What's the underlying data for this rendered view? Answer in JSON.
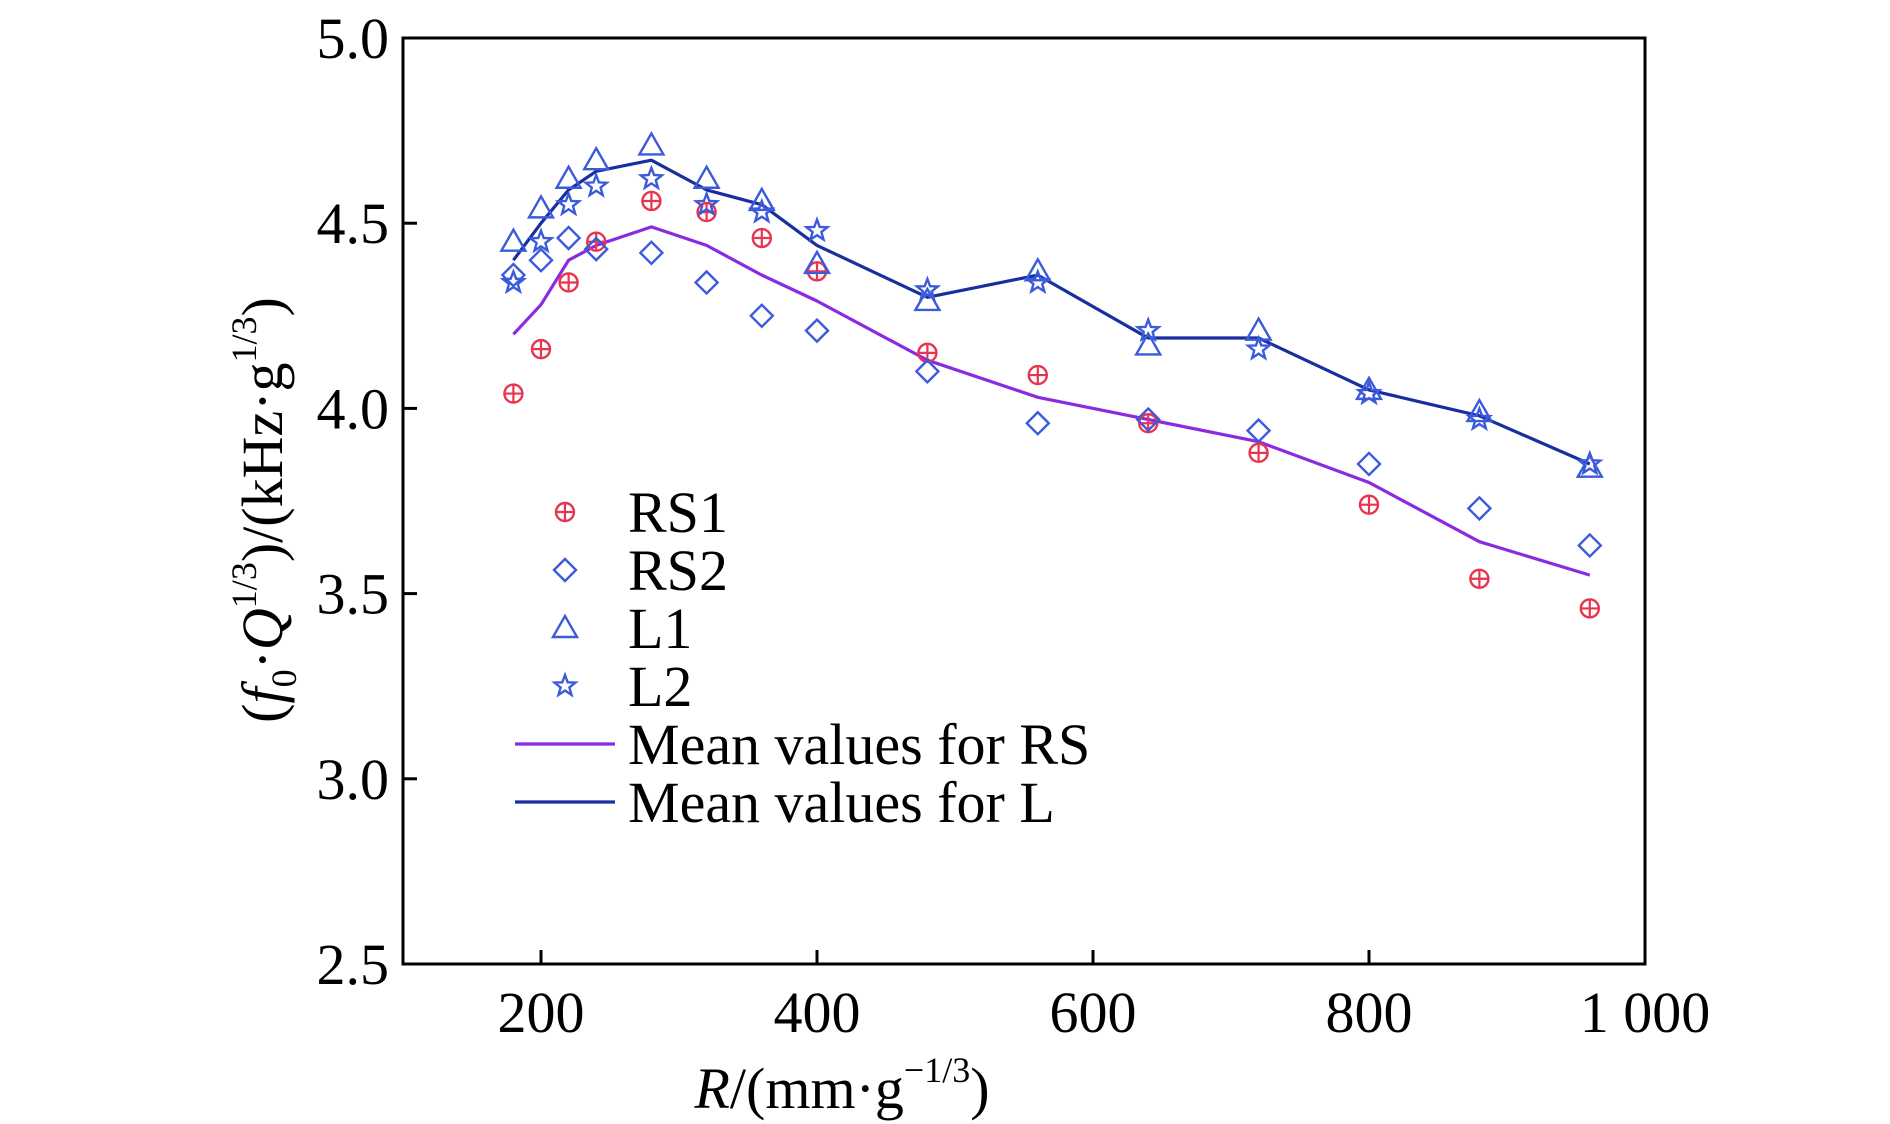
{
  "chart_data": {
    "type": "scatter",
    "xlabel": {
      "main": "R",
      "unit_open": "/(mm·g",
      "unit_sup": "−1/3",
      "unit_close": ")"
    },
    "ylabel": {
      "open": "(",
      "f": "f",
      "f_sub": "0",
      "dot": "·",
      "q": "Q",
      "q_sup": "1/3",
      "unit_open": ")/(kHz·g",
      "unit_sup": "1/3",
      "unit_close": ")"
    },
    "xlim": [
      100,
      1000
    ],
    "ylim": [
      2.5,
      5.0
    ],
    "x_ticks": [
      200,
      400,
      600,
      800,
      1000
    ],
    "x_tick_labels": [
      "200",
      "400",
      "600",
      "800",
      "1 000"
    ],
    "y_ticks": [
      2.5,
      3.0,
      3.5,
      4.0,
      4.5,
      5.0
    ],
    "y_tick_labels": [
      "2.5",
      "3.0",
      "3.5",
      "4.0",
      "4.5",
      "5.0"
    ],
    "grid": false,
    "legend_position": "lower-left",
    "series": [
      {
        "name": "RS1",
        "marker": "circle-plus",
        "color": "#e8344e",
        "points": [
          [
            180,
            4.04
          ],
          [
            200,
            4.16
          ],
          [
            220,
            4.34
          ],
          [
            240,
            4.45
          ],
          [
            280,
            4.56
          ],
          [
            320,
            4.53
          ],
          [
            360,
            4.46
          ],
          [
            400,
            4.37
          ],
          [
            480,
            4.15
          ],
          [
            560,
            4.09
          ],
          [
            640,
            3.96
          ],
          [
            720,
            3.88
          ],
          [
            800,
            3.74
          ],
          [
            880,
            3.54
          ],
          [
            960,
            3.46
          ]
        ]
      },
      {
        "name": "RS2",
        "marker": "diamond",
        "color": "#3b5bdb",
        "points": [
          [
            180,
            4.36
          ],
          [
            200,
            4.4
          ],
          [
            220,
            4.46
          ],
          [
            240,
            4.43
          ],
          [
            280,
            4.42
          ],
          [
            320,
            4.34
          ],
          [
            360,
            4.25
          ],
          [
            400,
            4.21
          ],
          [
            480,
            4.1
          ],
          [
            560,
            3.96
          ],
          [
            640,
            3.97
          ],
          [
            720,
            3.94
          ],
          [
            800,
            3.85
          ],
          [
            880,
            3.73
          ],
          [
            960,
            3.63
          ]
        ]
      },
      {
        "name": "L1",
        "marker": "triangle",
        "color": "#3b5bdb",
        "points": [
          [
            180,
            4.45
          ],
          [
            200,
            4.54
          ],
          [
            220,
            4.62
          ],
          [
            240,
            4.67
          ],
          [
            280,
            4.71
          ],
          [
            320,
            4.62
          ],
          [
            360,
            4.56
          ],
          [
            400,
            4.39
          ],
          [
            480,
            4.29
          ],
          [
            560,
            4.37
          ],
          [
            640,
            4.17
          ],
          [
            720,
            4.21
          ],
          [
            800,
            4.05
          ],
          [
            880,
            3.99
          ],
          [
            960,
            3.84
          ]
        ]
      },
      {
        "name": "L2",
        "marker": "star",
        "color": "#3b5bdb",
        "points": [
          [
            180,
            4.34
          ],
          [
            200,
            4.45
          ],
          [
            220,
            4.55
          ],
          [
            240,
            4.6
          ],
          [
            280,
            4.62
          ],
          [
            320,
            4.55
          ],
          [
            360,
            4.53
          ],
          [
            400,
            4.48
          ],
          [
            480,
            4.32
          ],
          [
            560,
            4.34
          ],
          [
            640,
            4.21
          ],
          [
            720,
            4.16
          ],
          [
            800,
            4.04
          ],
          [
            880,
            3.97
          ],
          [
            960,
            3.85
          ]
        ]
      },
      {
        "name": "Mean values for RS",
        "marker": "line",
        "color": "#8a2be2",
        "points": [
          [
            180,
            4.2
          ],
          [
            200,
            4.28
          ],
          [
            220,
            4.4
          ],
          [
            240,
            4.44
          ],
          [
            280,
            4.49
          ],
          [
            320,
            4.44
          ],
          [
            360,
            4.36
          ],
          [
            400,
            4.29
          ],
          [
            480,
            4.13
          ],
          [
            560,
            4.03
          ],
          [
            640,
            3.97
          ],
          [
            720,
            3.91
          ],
          [
            800,
            3.8
          ],
          [
            880,
            3.64
          ],
          [
            960,
            3.55
          ]
        ]
      },
      {
        "name": "Mean values for L",
        "marker": "line",
        "color": "#1a2f9e",
        "points": [
          [
            180,
            4.4
          ],
          [
            200,
            4.5
          ],
          [
            220,
            4.59
          ],
          [
            240,
            4.64
          ],
          [
            280,
            4.67
          ],
          [
            320,
            4.59
          ],
          [
            360,
            4.55
          ],
          [
            400,
            4.44
          ],
          [
            480,
            4.3
          ],
          [
            560,
            4.36
          ],
          [
            640,
            4.19
          ],
          [
            720,
            4.19
          ],
          [
            800,
            4.05
          ],
          [
            880,
            3.98
          ],
          [
            960,
            3.85
          ]
        ]
      }
    ]
  }
}
